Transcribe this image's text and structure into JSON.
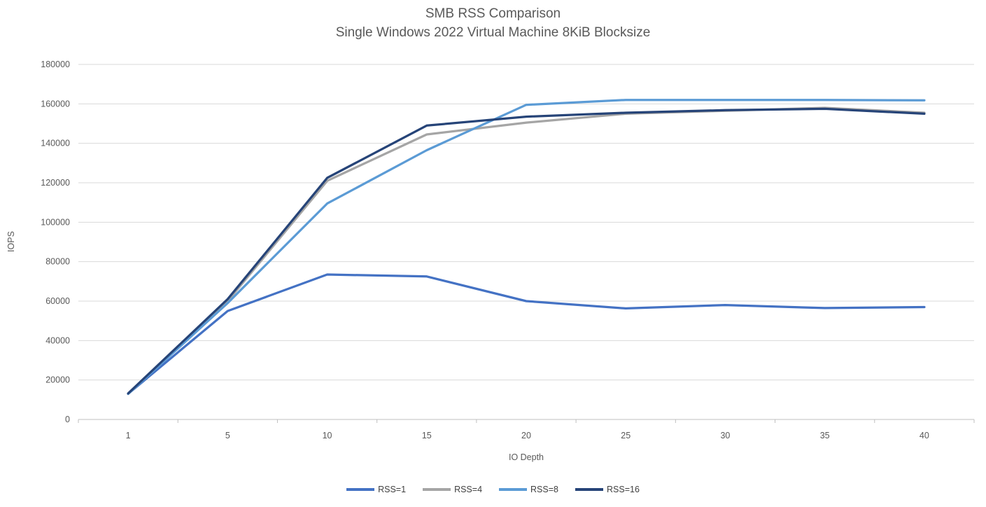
{
  "page": {
    "background": "#ffffff"
  },
  "chart_data": {
    "type": "line",
    "title": "SMB RSS Comparison",
    "subtitle": "Single Windows 2022 Virtual Machine 8KiB Blocksize",
    "xlabel": "IO Depth",
    "ylabel": "IOPS",
    "categories": [
      "1",
      "5",
      "10",
      "15",
      "20",
      "25",
      "30",
      "35",
      "40"
    ],
    "y_ticks": [
      0,
      20000,
      40000,
      60000,
      80000,
      100000,
      120000,
      140000,
      160000,
      180000
    ],
    "ylim": [
      0,
      180000
    ],
    "grid": "horizontal",
    "legend_position": "bottom",
    "series": [
      {
        "name": "RSS=1",
        "color": "#4472C4",
        "values": [
          13000,
          55000,
          73500,
          72500,
          60000,
          56300,
          58000,
          56500,
          57000
        ]
      },
      {
        "name": "RSS=4",
        "color": "#A5A5A5",
        "values": [
          13000,
          60000,
          121000,
          144500,
          150500,
          155000,
          156500,
          158000,
          155500
        ]
      },
      {
        "name": "RSS=8",
        "color": "#5B9BD5",
        "values": [
          13000,
          59000,
          109500,
          136500,
          159500,
          162000,
          162000,
          162000,
          161800
        ]
      },
      {
        "name": "RSS=16",
        "color": "#264478",
        "values": [
          13200,
          61000,
          122500,
          149000,
          153500,
          155500,
          156800,
          157500,
          155000
        ]
      }
    ],
    "colors": {
      "gridline": "#D9D9D9",
      "axis_line": "#BFBFBF",
      "tick_label": "#595959",
      "title": "#595959",
      "axis_title": "#595959",
      "legend_label": "#404040"
    }
  }
}
